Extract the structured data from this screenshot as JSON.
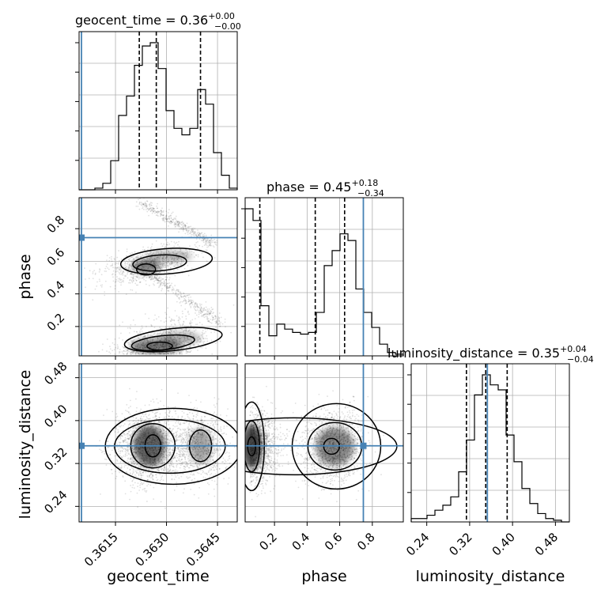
{
  "chart_data": {
    "type": "corner",
    "parameters": [
      "geocent_time",
      "phase",
      "luminosity_distance"
    ],
    "axis_labels": [
      "geocent_time",
      "phase",
      "luminosity_distance"
    ],
    "ranges": [
      [
        0.36043,
        0.36508
      ],
      [
        0.02,
        0.99
      ],
      [
        0.211,
        0.506
      ]
    ],
    "ticks": [
      [
        0.3615,
        0.363,
        0.3645
      ],
      [
        0.2,
        0.4,
        0.6,
        0.8
      ],
      [
        0.24,
        0.32,
        0.4,
        0.48
      ]
    ],
    "tick_labels": [
      [
        "0.3615",
        "0.3630",
        "0.3645"
      ],
      [
        "0.2",
        "0.4",
        "0.6",
        "0.8"
      ],
      [
        "0.24",
        "0.32",
        "0.40",
        "0.48"
      ]
    ],
    "truths": [
      0.3605,
      0.745,
      0.353
    ],
    "truth_color": "#4682b4",
    "titles": [
      {
        "label": "geocent_time",
        "eq": " = ",
        "median": "0.36",
        "plus": "+0.00",
        "minus": "−0.00"
      },
      {
        "label": "phase",
        "eq": " = ",
        "median": "0.45",
        "plus": "+0.18",
        "minus": "−0.34"
      },
      {
        "label": "luminosity_distance",
        "eq": " = ",
        "median": "0.35",
        "plus": "+0.04",
        "minus": "−0.04"
      }
    ],
    "quantiles": [
      [
        0.3622,
        0.3627,
        0.364
      ],
      [
        0.11,
        0.45,
        0.63
      ],
      [
        0.314,
        0.35,
        0.39
      ]
    ],
    "histograms": [
      {
        "edges_start": 0.36043,
        "bin_width": 0.0002325,
        "counts": [
          0,
          0,
          0.01,
          0.04,
          0.18,
          0.46,
          0.58,
          0.77,
          0.89,
          0.91,
          0.75,
          0.49,
          0.38,
          0.34,
          0.38,
          0.62,
          0.53,
          0.23,
          0.09,
          0.01
        ]
      },
      {
        "edges_start": 0.02,
        "bin_width": 0.0485,
        "counts": [
          0.88,
          0.81,
          0.3,
          0.12,
          0.19,
          0.16,
          0.14,
          0.13,
          0.14,
          0.26,
          0.54,
          0.63,
          0.73,
          0.69,
          0.4,
          0.26,
          0.17,
          0.07,
          0.02,
          0.01
        ]
      },
      {
        "edges_start": 0.211,
        "bin_width": 0.01475,
        "counts": [
          0.02,
          0.02,
          0.04,
          0.07,
          0.1,
          0.15,
          0.3,
          0.49,
          0.76,
          0.88,
          0.82,
          0.79,
          0.52,
          0.36,
          0.2,
          0.11,
          0.05,
          0.02,
          0.01,
          0
        ]
      }
    ],
    "grid": true,
    "legend": "none"
  }
}
